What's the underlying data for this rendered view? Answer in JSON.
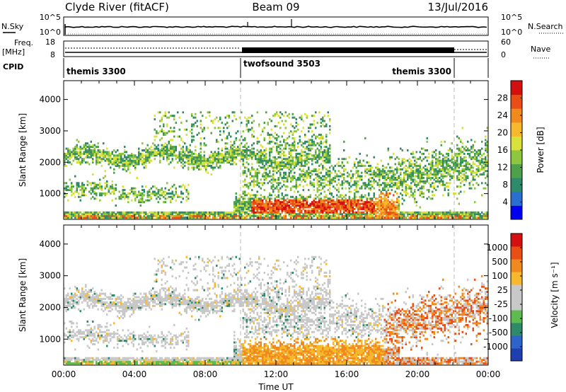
{
  "header": {
    "station": "Clyde River (fitACF)",
    "beam": "Beam 09",
    "date": "13/Jul/2016"
  },
  "panels": {
    "nsky": {
      "left_label": "N.Sky",
      "right_label": "N.Search",
      "left_ticks": [
        "10^5",
        "10^0"
      ],
      "right_ticks": [
        "10^5",
        "10^0"
      ]
    },
    "freq": {
      "left_label_line1": "Freq.",
      "left_label_line2": "[MHz]",
      "right_label": "Nave",
      "left_ticks": [
        "18",
        "8"
      ],
      "right_ticks": [
        "60",
        "0"
      ]
    },
    "cpid": {
      "label": "CPID",
      "segments": [
        {
          "start_hour": 0,
          "end_hour": 10,
          "label": "themis 3300",
          "anchor": "start"
        },
        {
          "start_hour": 10,
          "end_hour": 22,
          "label": "twofsound 3503",
          "anchor": "start"
        },
        {
          "start_hour": 22,
          "end_hour": 24,
          "label": "themis 3300",
          "anchor": "end"
        }
      ]
    }
  },
  "chart_data": [
    {
      "type": "heatmap",
      "name": "power",
      "ylabel": "Slant Range [km]",
      "yticks": [
        1000,
        2000,
        3000,
        4000
      ],
      "ylim": [
        180,
        4600
      ],
      "xlim_hours": [
        0,
        24
      ],
      "colorbar": {
        "label": "Power [dB]",
        "ticks": [
          "4",
          "8",
          "12",
          "16",
          "20",
          "24",
          "28"
        ],
        "colors": [
          "#0000ee",
          "#2a6fd0",
          "#2f8a6b",
          "#4ea04b",
          "#8ec63f",
          "#d9e23a",
          "#f6b82c",
          "#f08a1e",
          "#e84e16",
          "#d40f0f"
        ]
      }
    },
    {
      "type": "heatmap",
      "name": "velocity",
      "ylabel": "Slant Range [km]",
      "yticks": [
        1000,
        2000,
        3000,
        4000
      ],
      "ylim": [
        180,
        4600
      ],
      "xlim_hours": [
        0,
        24
      ],
      "xticks": [
        "00:00",
        "04:00",
        "08:00",
        "12:00",
        "16:00",
        "20:00",
        "00:00"
      ],
      "xlabel": "Time UT",
      "colorbar": {
        "label": "Velocity [m s⁻¹]",
        "ticks": [
          "1000",
          "500",
          "100",
          "25",
          "-25",
          "-100",
          "-500",
          "-1000"
        ],
        "colors": [
          "#1f3fb0",
          "#2e63c9",
          "#2f8a6b",
          "#5dbb4f",
          "#c8c8c8",
          "#c8c8c8",
          "#f6b82c",
          "#f08a1e",
          "#e84e16",
          "#d40f0f"
        ]
      }
    }
  ]
}
